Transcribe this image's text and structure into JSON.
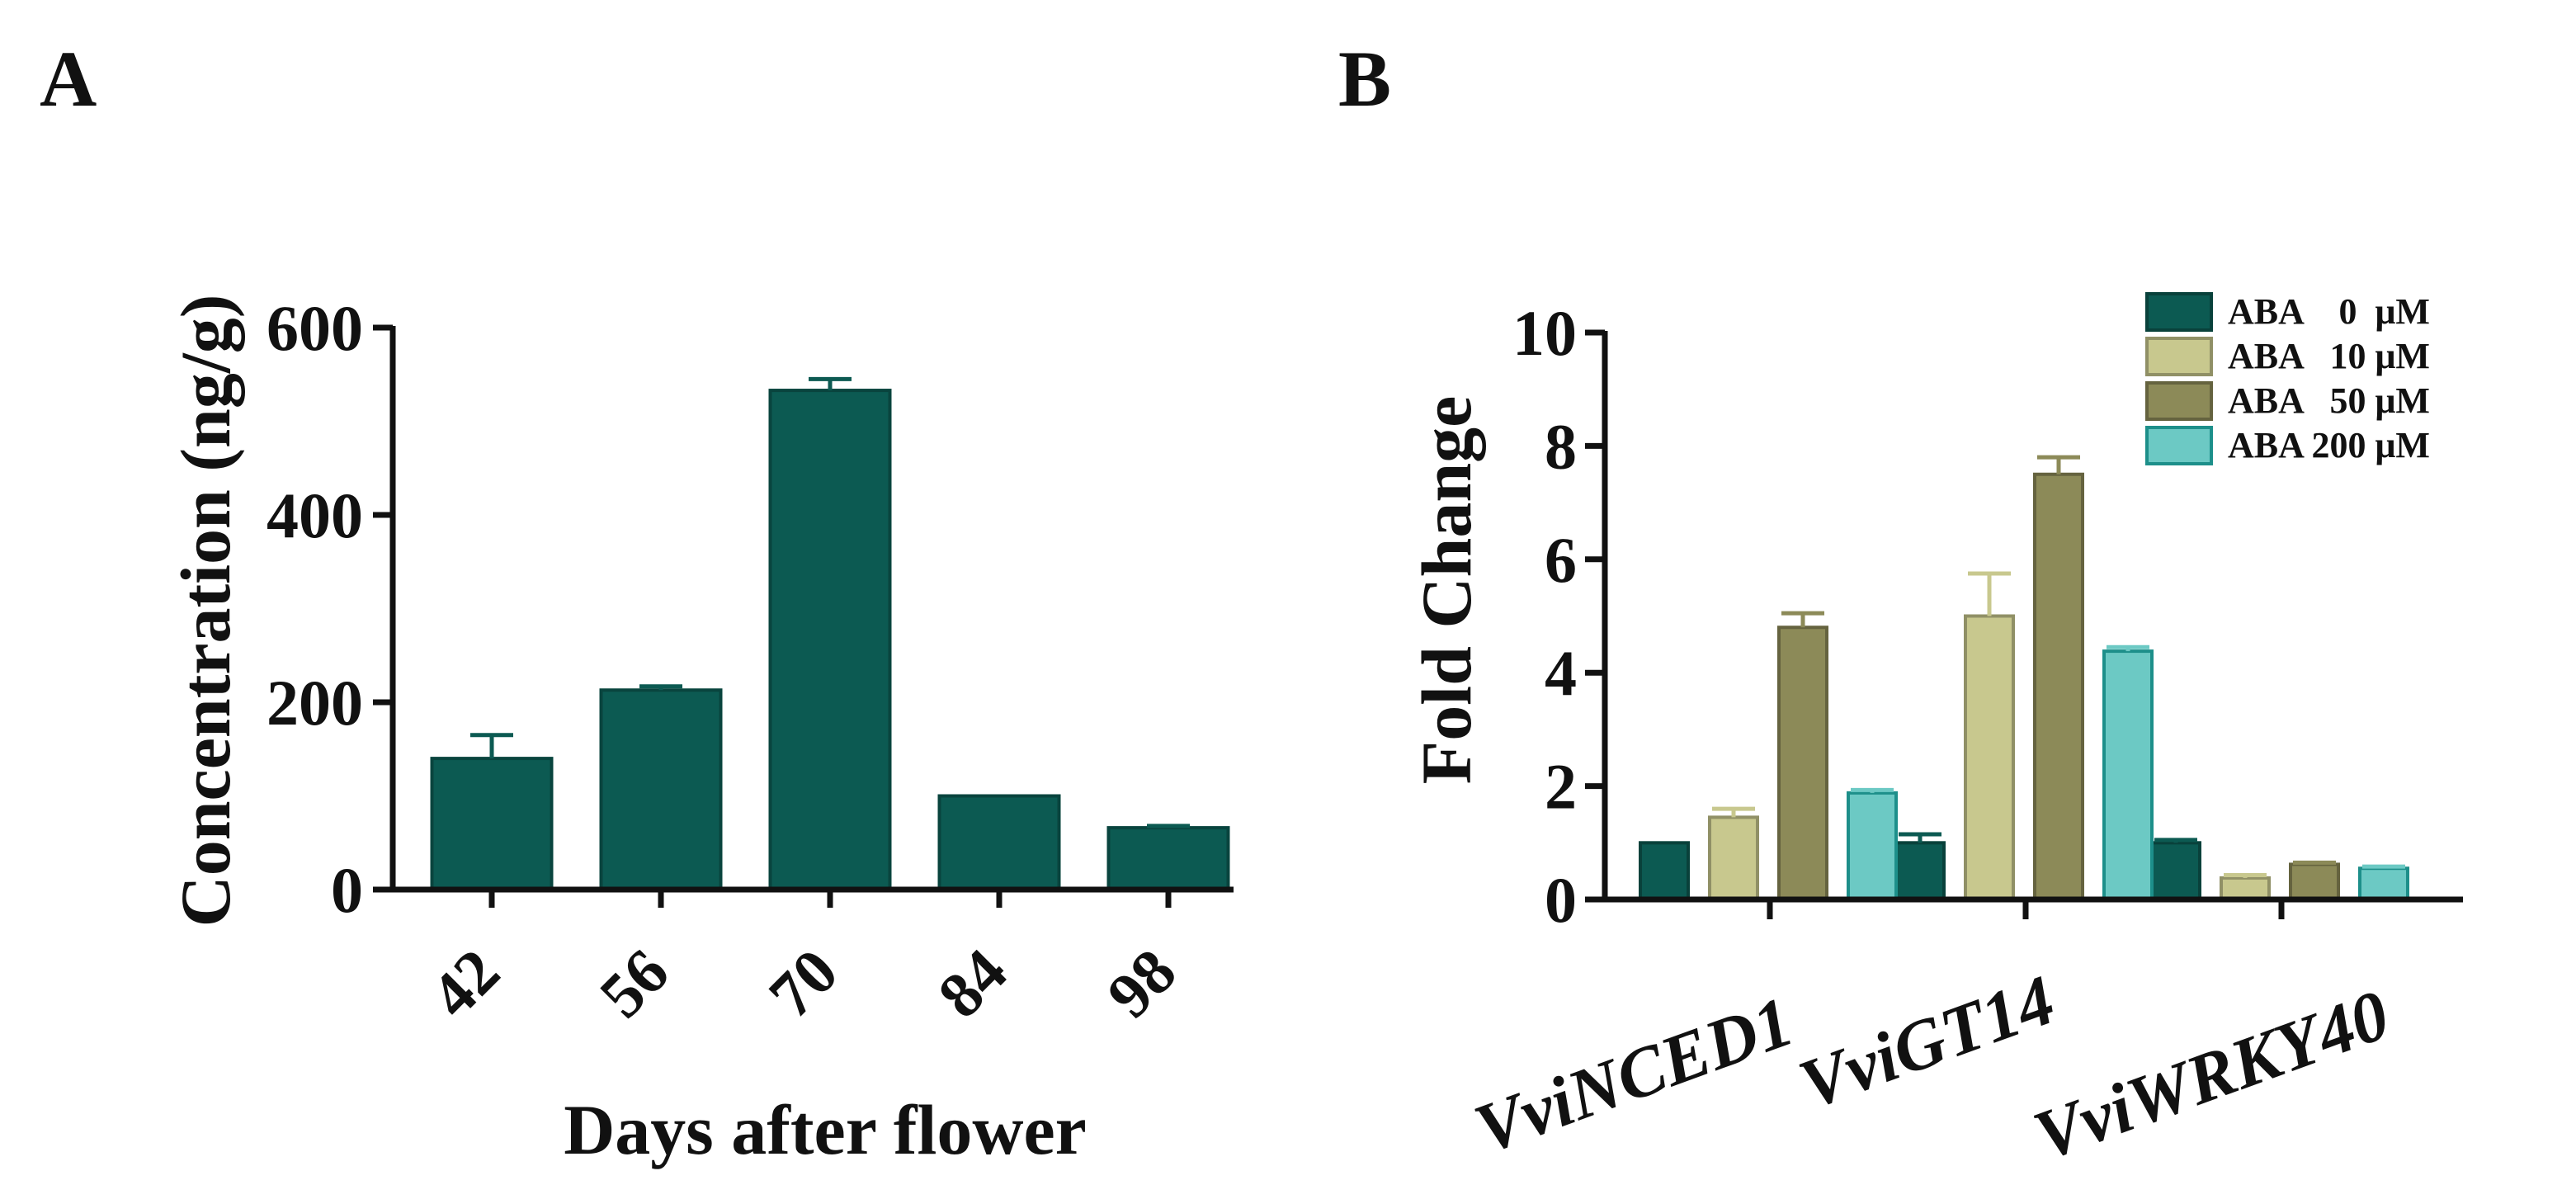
{
  "colors": {
    "dark_teal": "#0c5a52",
    "light_khaki": "#c8c88e",
    "olive": "#8c8a58",
    "cyan": "#6cc9c4",
    "cyan_edge": "#1d8f8a",
    "axis": "#111111"
  },
  "panels": {
    "a": {
      "letter": "A"
    },
    "b": {
      "letter": "B"
    }
  },
  "chart_data": [
    {
      "type": "bar",
      "panel": "A",
      "title": "",
      "xlabel": "Days after flower",
      "ylabel": "Concentration (ng/g)",
      "ylim": [
        0,
        600
      ],
      "yticks": [
        "0",
        "200",
        "400",
        "600"
      ],
      "categories": [
        "42",
        "56",
        "70",
        "84",
        "98"
      ],
      "values": [
        140,
        213,
        533,
        100,
        66
      ],
      "errors": [
        25,
        4,
        12,
        0,
        2
      ],
      "color": "#0c5a52"
    },
    {
      "type": "bar",
      "panel": "B",
      "title": "",
      "xlabel": "",
      "ylabel": "Fold Change",
      "ylim": [
        0,
        10
      ],
      "yticks": [
        "0",
        "2",
        "4",
        "6",
        "8",
        "10"
      ],
      "categories": [
        "VviNCED1",
        "VviGT14",
        "VviWRKY40"
      ],
      "legend_position": "top-right",
      "series": [
        {
          "name": "ABA    0  μM",
          "color": "#0c5a52",
          "values": [
            1.0,
            1.0,
            1.0
          ],
          "errors": [
            0,
            0.15,
            0.05
          ]
        },
        {
          "name": "ABA   10 μM",
          "color": "#c8c88e",
          "values": [
            1.45,
            5.0,
            0.38
          ],
          "errors": [
            0.15,
            0.75,
            0.05
          ]
        },
        {
          "name": "ABA   50 μM",
          "color": "#8c8a58",
          "values": [
            4.8,
            7.5,
            0.62
          ],
          "errors": [
            0.25,
            0.3,
            0.03
          ]
        },
        {
          "name": "ABA 200 μM",
          "color": "#6cc9c4",
          "values": [
            1.88,
            4.38,
            0.55
          ],
          "errors": [
            0.05,
            0.07,
            0.03
          ]
        }
      ]
    }
  ]
}
